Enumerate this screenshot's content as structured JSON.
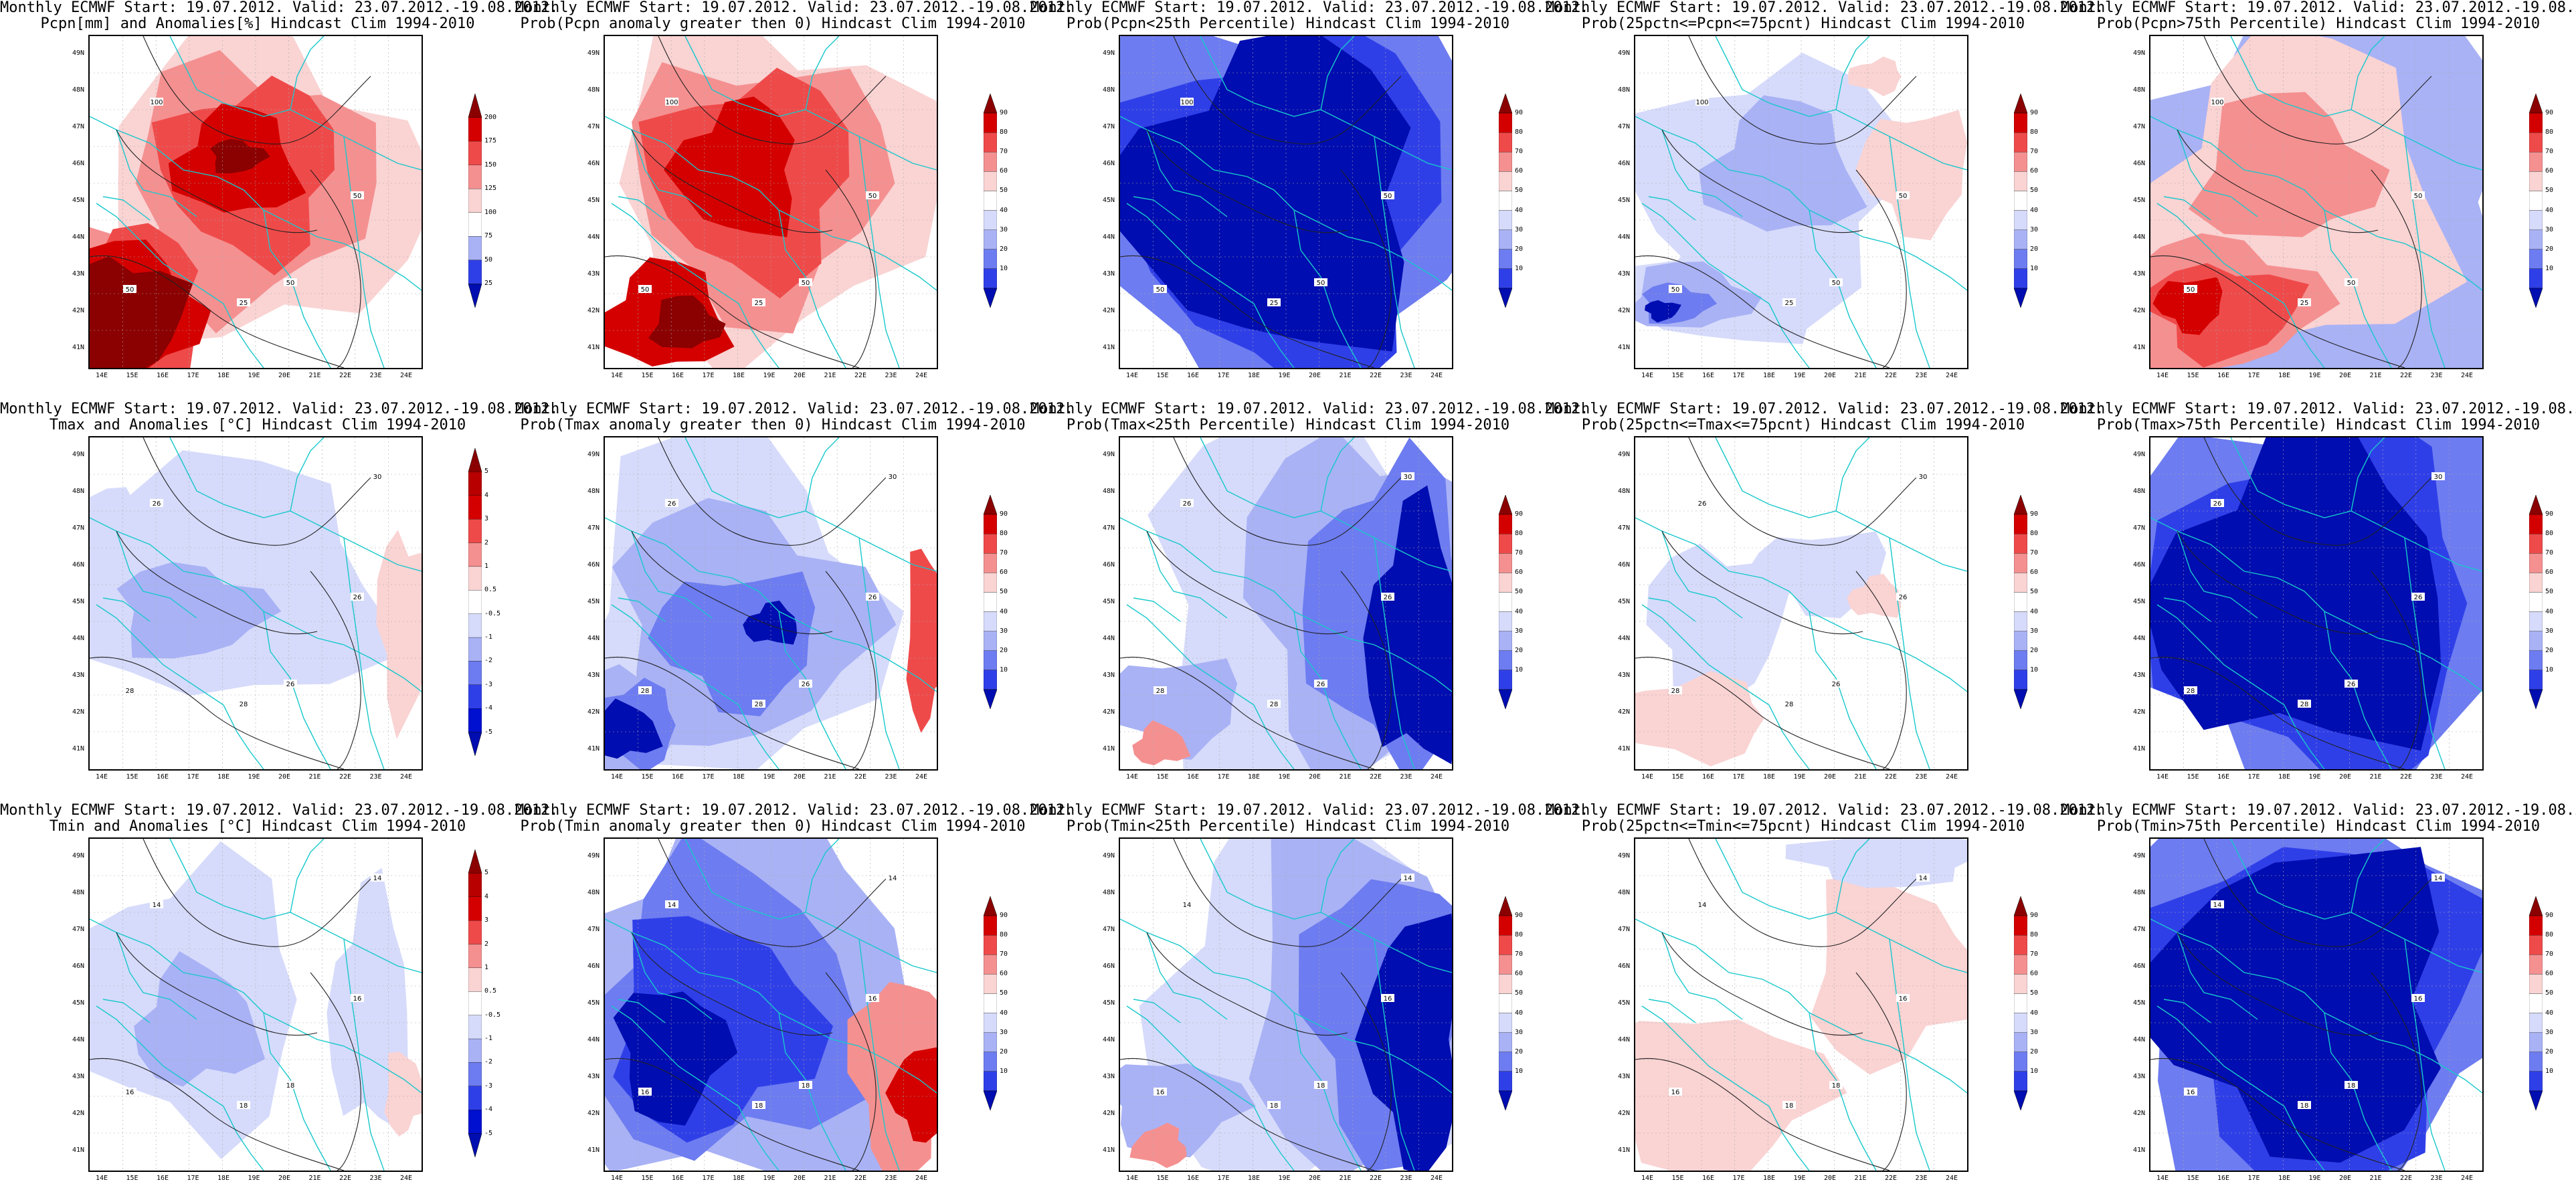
{
  "title_line1": "Monthly ECMWF Start: 19.07.2012. Valid: 23.07.2012.-19.08.2012.",
  "lat_labels": [
    "49N",
    "48N",
    "47N",
    "46N",
    "45N",
    "44N",
    "43N",
    "42N",
    "41N"
  ],
  "lon_labels": [
    "14E",
    "15E",
    "16E",
    "17E",
    "18E",
    "19E",
    "20E",
    "21E",
    "22E",
    "23E",
    "24E"
  ],
  "colors": {
    "coast": "#18c8cc",
    "contour": "#222222",
    "reds": [
      "#8b0000",
      "#d40000",
      "#ef4a4a",
      "#f59090",
      "#fad3d3"
    ],
    "blues": [
      "#d6dbfb",
      "#a9b2f5",
      "#6d7cf0",
      "#2f3fe8",
      "#000db0"
    ]
  },
  "colorbar_scales": {
    "anom_pcpn": [
      "200",
      "175",
      "150",
      "125",
      "100",
      "75",
      "50",
      "25"
    ],
    "anom_temp": [
      "5",
      "4",
      "3",
      "2",
      "1",
      "0.5",
      "-0.5",
      "-1",
      "-2",
      "-3",
      "-4",
      "-5"
    ],
    "prob": [
      "90",
      "80",
      "70",
      "60",
      "50",
      "40",
      "30",
      "20",
      "10"
    ]
  },
  "panels": [
    {
      "subtitle": "Pcpn[mm] and Anomalies[%] Hindcast Clim 1994-2010",
      "scale": "anom_pcpn",
      "pattern": "pcpn_anom",
      "contours": [
        "100",
        "50",
        "50",
        "25",
        "50"
      ]
    },
    {
      "subtitle": "Prob(Pcpn anomaly greater then 0) Hindcast Clim 1994-2010",
      "scale": "prob",
      "pattern": "pcpn_prob",
      "contours": [
        "100",
        "50",
        "50",
        "25",
        "50"
      ]
    },
    {
      "subtitle": "Prob(Pcpn<25th Percentile) Hindcast Clim 1994-2010",
      "scale": "prob",
      "pattern": "deep_blue",
      "contours": [
        "100",
        "50",
        "50",
        "25",
        "50"
      ]
    },
    {
      "subtitle": "Prob(25pctn<=Pcpn<=75pcnt) Hindcast Clim 1994-2010",
      "scale": "prob",
      "pattern": "mixed_pcpn",
      "contours": [
        "100",
        "50",
        "50",
        "25",
        "50"
      ]
    },
    {
      "subtitle": "Prob(Pcpn>75th Percentile) Hindcast Clim 1994-2010",
      "scale": "prob",
      "pattern": "pcpn_high",
      "contours": [
        "100",
        "50",
        "50",
        "25",
        "50"
      ]
    },
    {
      "subtitle": "Tmax and Anomalies [°C] Hindcast Clim 1994-2010",
      "scale": "anom_temp",
      "pattern": "light_blue",
      "contours": [
        "26",
        "28",
        "26",
        "28",
        "26",
        "30"
      ]
    },
    {
      "subtitle": "Prob(Tmax anomaly greater then 0) Hindcast Clim 1994-2010",
      "scale": "prob",
      "pattern": "blue_diag",
      "contours": [
        "26",
        "28",
        "26",
        "28",
        "26",
        "30"
      ]
    },
    {
      "subtitle": "Prob(Tmax<25th Percentile) Hindcast Clim 1994-2010",
      "scale": "prob",
      "pattern": "blue_east",
      "contours": [
        "26",
        "28",
        "26",
        "28",
        "26",
        "30"
      ]
    },
    {
      "subtitle": "Prob(25pctn<=Tmax<=75pcnt) Hindcast Clim 1994-2010",
      "scale": "prob",
      "pattern": "mostly_white",
      "contours": [
        "26",
        "28",
        "26",
        "28",
        "26",
        "30"
      ]
    },
    {
      "subtitle": "Prob(Tmax>75th Percentile) Hindcast Clim 1994-2010",
      "scale": "prob",
      "pattern": "deep_blue",
      "contours": [
        "26",
        "28",
        "26",
        "28",
        "26",
        "30"
      ]
    },
    {
      "subtitle": "Tmin and Anomalies [°C] Hindcast Clim 1994-2010",
      "scale": "anom_temp",
      "pattern": "light_blue_min",
      "contours": [
        "14",
        "16",
        "16",
        "18",
        "18",
        "14"
      ]
    },
    {
      "subtitle": "Prob(Tmin anomaly greater then 0) Hindcast Clim 1994-2010",
      "scale": "prob",
      "pattern": "blue_red_east",
      "contours": [
        "14",
        "16",
        "16",
        "18",
        "18",
        "14"
      ]
    },
    {
      "subtitle": "Prob(Tmin<25th Percentile) Hindcast Clim 1994-2010",
      "scale": "prob",
      "pattern": "blue_east",
      "contours": [
        "14",
        "16",
        "16",
        "18",
        "18",
        "14"
      ]
    },
    {
      "subtitle": "Prob(25pctn<=Tmin<=75pcnt) Hindcast Clim 1994-2010",
      "scale": "prob",
      "pattern": "mostly_white_pink",
      "contours": [
        "14",
        "16",
        "16",
        "18",
        "18",
        "14"
      ]
    },
    {
      "subtitle": "Prob(Tmin>75th Percentile) Hindcast Clim 1994-2010",
      "scale": "prob",
      "pattern": "deep_blue",
      "contours": [
        "14",
        "16",
        "16",
        "18",
        "18",
        "14"
      ]
    }
  ]
}
